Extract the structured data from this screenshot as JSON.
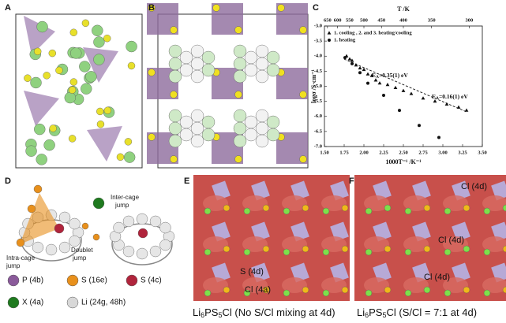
{
  "panel_labels": [
    "A",
    "B",
    "C",
    "D",
    "E",
    "F"
  ],
  "panel_d": {
    "inter_cage": [
      "Inter-cage",
      "jump"
    ],
    "intra_cage": [
      "Intra-cage",
      "jump"
    ],
    "doublet": [
      "Doublet",
      "jump"
    ],
    "legend": [
      {
        "label": "P (4b)",
        "color": "#8a5a9a"
      },
      {
        "label": "S (16e)",
        "color": "#e8901c"
      },
      {
        "label": "S (4c)",
        "color": "#b0243c"
      },
      {
        "label": "X (4a)",
        "color": "#1f7a1f"
      },
      {
        "label": "Li (24g, 48h)",
        "color": "#d8d8d8"
      }
    ]
  },
  "panel_e": {
    "labels": [
      "S (4d)",
      "Cl (4a)"
    ],
    "caption": [
      "Li",
      "6",
      "PS",
      "5",
      "Cl (No S/Cl mixing at 4d)"
    ]
  },
  "panel_f": {
    "labels": [
      "Cl (4d)",
      "Cl (4d)",
      "Cl (4d)"
    ],
    "caption": [
      "Li",
      "6",
      "PS",
      "5",
      "Cl (S/Cl = 7:1 at 4d)"
    ]
  },
  "chart_data": {
    "type": "scatter",
    "xlabel": "1000T⁻¹ /K⁻¹",
    "ylabel": "logσ /S·cm⁻¹",
    "x2label": "T /K",
    "xlim": [
      1.5,
      3.5
    ],
    "ylim": [
      -7.0,
      -3.0
    ],
    "xticks": [
      {
        "value": 1.5,
        "label": "1.50"
      },
      {
        "value": 1.75,
        "label": "1.75"
      },
      {
        "value": 2.0,
        "label": "2.00"
      },
      {
        "value": 2.25,
        "label": "2.25"
      },
      {
        "value": 2.5,
        "label": "2.50"
      },
      {
        "value": 2.75,
        "label": "2.75"
      },
      {
        "value": 3.0,
        "label": "3.00"
      },
      {
        "value": 3.25,
        "label": "3.25"
      },
      {
        "value": 3.5,
        "label": "3.50"
      }
    ],
    "yticks": [
      {
        "value": -3.0,
        "label": "-3.0"
      },
      {
        "value": -3.5,
        "label": "-3.5"
      },
      {
        "value": -4.0,
        "label": "-4.0"
      },
      {
        "value": -4.5,
        "label": "-4.5"
      },
      {
        "value": -5.0,
        "label": "-5.0"
      },
      {
        "value": -5.5,
        "label": "-5.5"
      },
      {
        "value": -6.0,
        "label": "-6.0"
      },
      {
        "value": -6.5,
        "label": "-6.5"
      },
      {
        "value": -7.0,
        "label": "-7.0"
      }
    ],
    "x2ticks": [
      650,
      600,
      550,
      500,
      450,
      400,
      350,
      300
    ],
    "series": [
      {
        "name": "1. cooling , 2. and 3. heating/cooling",
        "marker": "triangle",
        "color": "#111111",
        "x": [
          1.78,
          1.82,
          1.85,
          1.9,
          1.95,
          2.0,
          2.05,
          2.1,
          2.15,
          2.2,
          2.3,
          2.4,
          2.5,
          2.6,
          2.75,
          2.9,
          3.05,
          3.2,
          3.3
        ],
        "values": [
          -4.0,
          -4.1,
          -4.15,
          -4.3,
          -4.4,
          -4.45,
          -4.6,
          -4.65,
          -4.8,
          -4.9,
          -4.95,
          -5.05,
          -5.15,
          -5.25,
          -5.4,
          -5.5,
          -5.6,
          -5.7,
          -5.8
        ]
      },
      {
        "name": "1. heating",
        "marker": "circle",
        "color": "#111111",
        "x": [
          1.76,
          1.85,
          1.95,
          2.05,
          2.25,
          2.45,
          2.7,
          2.95
        ],
        "values": [
          -4.05,
          -4.25,
          -4.55,
          -4.9,
          -5.3,
          -5.8,
          -6.3,
          -6.7
        ]
      },
      {
        "marker": "dashed-line",
        "color": "#111111",
        "x": [
          1.75,
          3.3
        ],
        "values": [
          -4.1,
          -5.85
        ]
      }
    ],
    "annotations": [
      [
        "E",
        "A",
        "=0.35(1) eV"
      ],
      [
        "E",
        "A",
        "=0.16(1) eV"
      ]
    ],
    "legend": "upper-left"
  }
}
